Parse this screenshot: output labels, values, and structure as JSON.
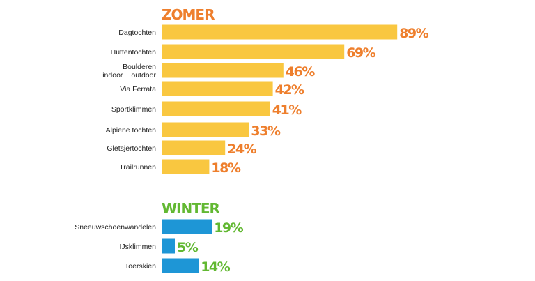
{
  "chart_data": [
    {
      "type": "bar",
      "orientation": "horizontal",
      "title": "ZOMER",
      "categories": [
        [
          "Dagtochten"
        ],
        [
          "Huttentochten"
        ],
        [
          "Boulderen",
          "indoor + outdoor"
        ],
        [
          "Via Ferrata"
        ],
        [
          "Sportklimmen"
        ],
        [
          "Alpiene tochten"
        ],
        [
          "Gletsjertochten"
        ],
        [
          "Trailrunnen"
        ]
      ],
      "values": [
        89,
        69,
        46,
        42,
        41,
        33,
        24,
        18
      ],
      "value_labels": [
        "89%",
        "69%",
        "46%",
        "42%",
        "41%",
        "33%",
        "24%",
        "18%"
      ],
      "unit": "%",
      "bar_color": "#F9C740",
      "accent_color": "#EE7F2D"
    },
    {
      "type": "bar",
      "orientation": "horizontal",
      "title": "WINTER",
      "categories": [
        [
          "Sneeuwschoenwandelen"
        ],
        [
          "IJsklimmen"
        ],
        [
          "Toerskiën"
        ]
      ],
      "values": [
        19,
        5,
        14
      ],
      "value_labels": [
        "19%",
        "5%",
        "14%"
      ],
      "unit": "%",
      "bar_color": "#1E96D6",
      "accent_color": "#62B832"
    }
  ]
}
